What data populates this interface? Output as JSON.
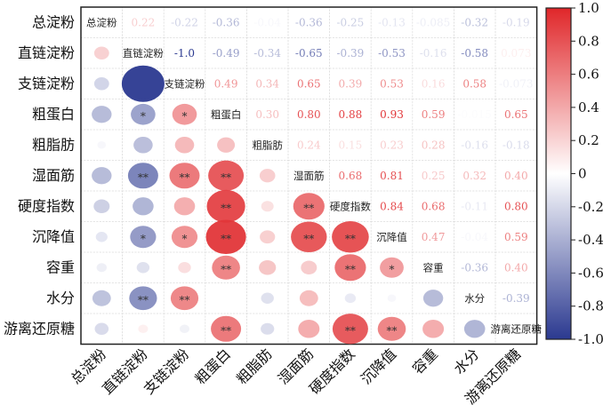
{
  "chart_data": {
    "type": "heatmap",
    "subtype": "correlation-matrix",
    "title": "",
    "variables": [
      "总淀粉",
      "直链淀粉",
      "支链淀粉",
      "粗蛋白",
      "粗脂肪",
      "湿面筋",
      "硬度指数",
      "沉降值",
      "容重",
      "水分",
      "游离还原糖"
    ],
    "upper_triangle": "correlation coefficients as text",
    "lower_triangle": "circles sized and colored by correlation, with significance stars",
    "diagonal": "variable names",
    "values": [
      [
        null,
        "0.22",
        "-0.22",
        "-0.36",
        "-0.04",
        "-0.36",
        "-0.25",
        "-0.13",
        "-0.085",
        "-0.32",
        "-0.19"
      ],
      [
        null,
        null,
        "-1.0",
        "-0.49",
        "-0.34",
        "-0.65",
        "-0.39",
        "-0.53",
        "-0.16",
        "-0.58",
        "0.073"
      ],
      [
        null,
        null,
        null,
        "0.49",
        "0.34",
        "0.65",
        "0.39",
        "0.53",
        "0.16",
        "0.58",
        "-0.073"
      ],
      [
        null,
        null,
        null,
        null,
        "0.30",
        "0.80",
        "0.88",
        "0.93",
        "0.59",
        "-0.015",
        "0.65"
      ],
      [
        null,
        null,
        null,
        null,
        null,
        "0.24",
        "0.15",
        "0.23",
        "0.28",
        "-0.16",
        "-0.18"
      ],
      [
        null,
        null,
        null,
        null,
        null,
        null,
        "0.68",
        "0.81",
        "0.25",
        "0.32",
        "0.40"
      ],
      [
        null,
        null,
        null,
        null,
        null,
        null,
        null,
        "0.84",
        "0.68",
        "-0.11",
        "0.80"
      ],
      [
        null,
        null,
        null,
        null,
        null,
        null,
        null,
        null,
        "0.47",
        "-0.04",
        "0.59"
      ],
      [
        null,
        null,
        null,
        null,
        null,
        null,
        null,
        null,
        null,
        "-0.36",
        "0.40"
      ],
      [
        null,
        null,
        null,
        null,
        null,
        null,
        null,
        null,
        null,
        null,
        "-0.39"
      ],
      [
        null,
        null,
        null,
        null,
        null,
        null,
        null,
        null,
        null,
        null,
        null
      ]
    ],
    "significance": [
      [
        "",
        "",
        "",
        "",
        "",
        "",
        "",
        "",
        "",
        "",
        ""
      ],
      [
        "",
        "",
        "",
        "",
        "",
        "",
        "",
        "",
        "",
        "",
        ""
      ],
      [
        "",
        "",
        "",
        "",
        "",
        "",
        "",
        "",
        "",
        "",
        ""
      ],
      [
        "",
        "*",
        "*",
        "",
        "",
        "",
        "",
        "",
        "",
        "",
        ""
      ],
      [
        "",
        "",
        "",
        "",
        "",
        "",
        "",
        "",
        "",
        "",
        ""
      ],
      [
        "",
        "**",
        "**",
        "**",
        "",
        "",
        "",
        "",
        "",
        "",
        ""
      ],
      [
        "",
        "",
        "",
        "**",
        "",
        "**",
        "",
        "",
        "",
        "",
        ""
      ],
      [
        "",
        "*",
        "*",
        "**",
        "",
        "**",
        "**",
        "",
        "",
        "",
        ""
      ],
      [
        "",
        "",
        "",
        "**",
        "",
        "",
        "**",
        "*",
        "",
        "",
        ""
      ],
      [
        "",
        "**",
        "**",
        "",
        "",
        "",
        "",
        "",
        "",
        "",
        ""
      ],
      [
        "",
        "",
        "",
        "**",
        "",
        "",
        "**",
        "**",
        "",
        "",
        ""
      ]
    ],
    "colorbar": {
      "range": [
        -1.0,
        1.0
      ],
      "ticks": [
        "1.0",
        "0.8",
        "0.6",
        "0.4",
        "0.2",
        "0",
        "-0.2",
        "-0.4",
        "-0.6",
        "-0.8",
        "-1.0"
      ],
      "colors": {
        "negative": "#2b3990",
        "zero": "#ffffff",
        "positive": "#e0272a"
      }
    },
    "grid": true
  }
}
